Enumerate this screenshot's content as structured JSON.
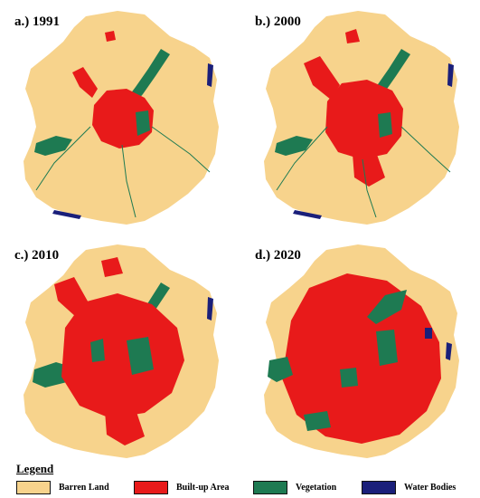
{
  "panels": [
    {
      "label": "a.) 1991",
      "builtup_level": 1
    },
    {
      "label": "b.) 2000",
      "builtup_level": 2
    },
    {
      "label": "c.) 2010",
      "builtup_level": 3
    },
    {
      "label": "d.) 2020",
      "builtup_level": 4
    }
  ],
  "legend": {
    "title": "Legend",
    "items": [
      {
        "label": "Barren Land",
        "color": "#f7d38c"
      },
      {
        "label": "Built-up Area",
        "color": "#e81a1a"
      },
      {
        "label": "Vegetation",
        "color": "#1e7a52"
      },
      {
        "label": "Water Bodies",
        "color": "#1a1f7a"
      }
    ]
  },
  "colors": {
    "barren": "#f7d38c",
    "builtup": "#e81a1a",
    "vegetation": "#1e7a52",
    "water": "#1a1f7a"
  }
}
